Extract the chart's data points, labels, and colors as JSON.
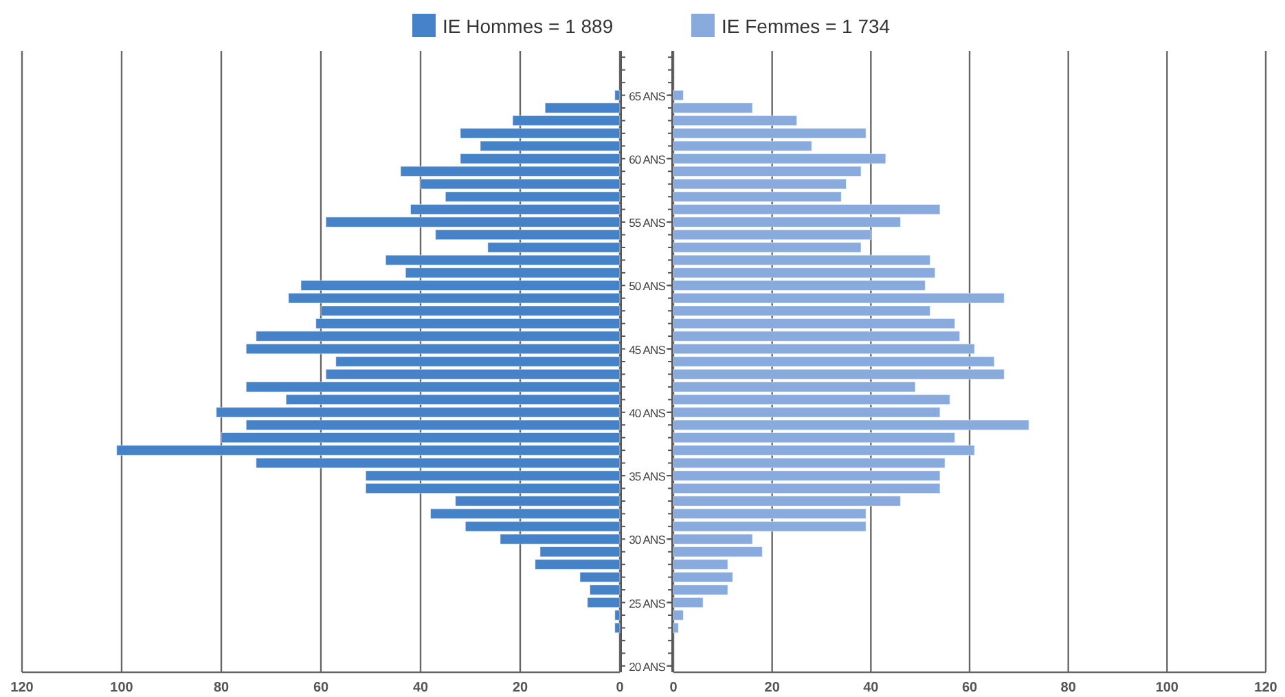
{
  "chart_data": [
    {
      "type": "bar",
      "orientation": "horizontal",
      "categories": [
        null,
        null,
        null,
        null,
        null,
        null,
        null,
        null,
        null,
        null,
        null,
        null,
        null,
        null,
        null,
        null,
        null,
        null,
        null,
        null,
        null,
        null,
        null,
        null,
        null,
        null,
        null,
        null,
        null,
        null,
        null,
        null,
        null,
        null,
        null,
        null,
        null,
        null,
        null,
        null,
        null,
        null,
        null,
        null,
        null,
        null,
        null,
        null,
        null
      ],
      "series": [
        {
          "name": "IE Hommes = 1 889",
          "color": "#4682c8",
          "values": [
            null,
            null,
            null,
            1,
            15,
            21.5,
            32,
            28,
            32,
            44,
            40,
            35,
            42,
            59,
            37,
            26.5,
            47,
            43,
            64,
            66.5,
            60,
            61,
            73,
            75,
            57,
            59,
            75,
            67,
            81,
            75,
            80,
            101,
            73,
            51,
            51,
            33,
            38,
            31,
            24,
            16,
            17,
            8,
            6,
            6.5,
            1,
            1,
            null,
            null,
            null
          ]
        }
      ],
      "xlim": [
        120,
        0
      ],
      "xticks": [
        120,
        100,
        80,
        60,
        40,
        20,
        0
      ],
      "grid": "x",
      "legend": "top",
      "tick_labels": "x"
    },
    {
      "type": "bar",
      "orientation": "horizontal",
      "categories": [
        null,
        null,
        null,
        "65 ANS",
        null,
        null,
        null,
        null,
        "60 ANS",
        null,
        null,
        null,
        null,
        "55 ANS",
        null,
        null,
        null,
        null,
        "50 ANS",
        null,
        null,
        null,
        null,
        "45 ANS",
        null,
        null,
        null,
        null,
        "40 ANS",
        null,
        null,
        null,
        null,
        "35 ANS",
        null,
        null,
        null,
        null,
        "30 ANS",
        null,
        null,
        null,
        null,
        "25 ANS",
        null,
        null,
        null,
        null,
        "20 ANS"
      ],
      "series": [
        {
          "name": "IE Femmes = 1 734",
          "color": "#88aadd",
          "values": [
            null,
            null,
            null,
            2,
            16,
            25,
            39,
            28,
            43,
            38,
            35,
            34,
            54,
            46,
            40,
            38,
            52,
            53,
            51,
            67,
            52,
            57,
            58,
            61,
            65,
            67,
            49,
            56,
            54,
            72,
            57,
            61,
            55,
            54,
            54,
            46,
            39,
            39,
            16,
            18,
            11,
            12,
            11,
            6,
            2,
            1,
            null,
            null,
            null
          ]
        }
      ],
      "xlim": [
        0,
        120
      ],
      "xticks": [
        0,
        20,
        40,
        60,
        80,
        100,
        120
      ],
      "grid": "x",
      "legend": "top"
    }
  ]
}
